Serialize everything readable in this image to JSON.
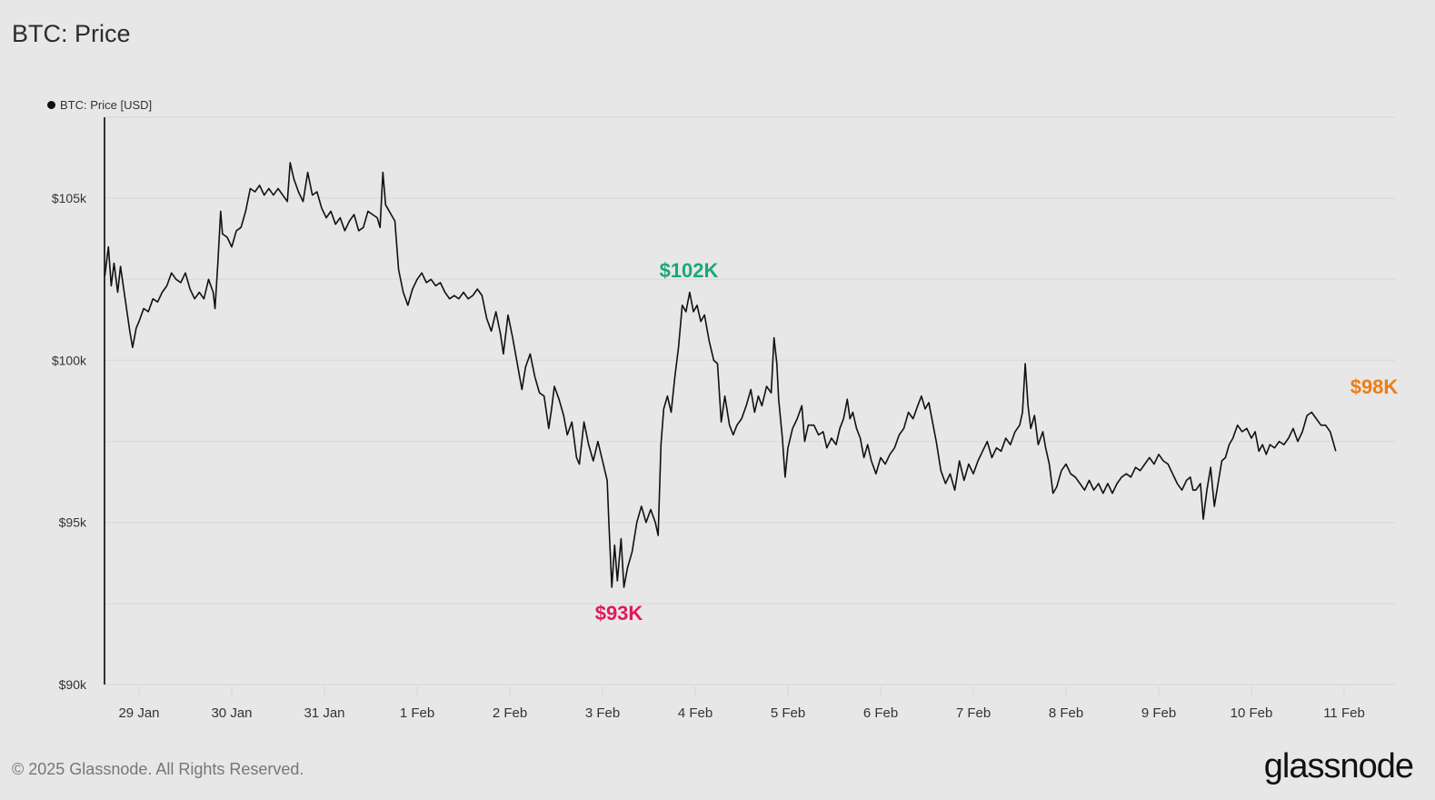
{
  "header": {
    "title": "BTC: Price"
  },
  "legend": {
    "label": "BTC: Price [USD]",
    "color": "#111111"
  },
  "footer": {
    "copyright": "© 2025 Glassnode. All Rights Reserved.",
    "brand": "glassnode"
  },
  "annotations": [
    {
      "text": "$102K",
      "color": "#1aa974",
      "x": 4.9,
      "price": 102.3
    },
    {
      "text": "$93K",
      "color": "#e0195f",
      "x": 4.15,
      "price": 92.7
    },
    {
      "text": "$98K",
      "color": "#ef7d12",
      "x": 13.4,
      "price": 98.8
    }
  ],
  "chart_data": {
    "type": "line",
    "title": "BTC: Price",
    "xlabel": "",
    "ylabel": "Price [USD]",
    "series_name": "BTC: Price [USD]",
    "ylim": [
      90,
      107.5
    ],
    "yticks": [
      {
        "value": 90,
        "label": "$90k"
      },
      {
        "value": 95,
        "label": "$95k"
      },
      {
        "value": 100,
        "label": "$100k"
      },
      {
        "value": 105,
        "label": "$105k"
      }
    ],
    "grid_values": [
      90,
      92.5,
      95,
      97.5,
      100,
      102.5,
      105,
      107.5
    ],
    "xticks": [
      "29 Jan",
      "30 Jan",
      "31 Jan",
      "1 Feb",
      "2 Feb",
      "3 Feb",
      "4 Feb",
      "5 Feb",
      "6 Feb",
      "7 Feb",
      "8 Feb",
      "9 Feb",
      "10 Feb",
      "11 Feb"
    ],
    "x_unit": "days since 29 Jan 00:00",
    "xlim": [
      -0.37,
      13.55
    ],
    "points": [
      [
        -0.37,
        102.6
      ],
      [
        -0.33,
        103.5
      ],
      [
        -0.3,
        102.3
      ],
      [
        -0.27,
        103.0
      ],
      [
        -0.23,
        102.1
      ],
      [
        -0.2,
        102.9
      ],
      [
        -0.15,
        101.9
      ],
      [
        -0.1,
        100.9
      ],
      [
        -0.07,
        100.4
      ],
      [
        -0.03,
        101.0
      ],
      [
        0.0,
        101.2
      ],
      [
        0.05,
        101.6
      ],
      [
        0.1,
        101.5
      ],
      [
        0.15,
        101.9
      ],
      [
        0.2,
        101.8
      ],
      [
        0.25,
        102.1
      ],
      [
        0.3,
        102.3
      ],
      [
        0.35,
        102.7
      ],
      [
        0.4,
        102.5
      ],
      [
        0.45,
        102.4
      ],
      [
        0.5,
        102.7
      ],
      [
        0.55,
        102.2
      ],
      [
        0.6,
        101.9
      ],
      [
        0.65,
        102.1
      ],
      [
        0.7,
        101.9
      ],
      [
        0.75,
        102.5
      ],
      [
        0.8,
        102.1
      ],
      [
        0.82,
        101.6
      ],
      [
        0.85,
        103.0
      ],
      [
        0.88,
        104.6
      ],
      [
        0.9,
        103.9
      ],
      [
        0.95,
        103.8
      ],
      [
        1.0,
        103.5
      ],
      [
        1.05,
        104.0
      ],
      [
        1.1,
        104.1
      ],
      [
        1.15,
        104.6
      ],
      [
        1.2,
        105.3
      ],
      [
        1.25,
        105.2
      ],
      [
        1.3,
        105.4
      ],
      [
        1.35,
        105.1
      ],
      [
        1.4,
        105.3
      ],
      [
        1.45,
        105.1
      ],
      [
        1.5,
        105.3
      ],
      [
        1.55,
        105.1
      ],
      [
        1.6,
        104.9
      ],
      [
        1.63,
        106.1
      ],
      [
        1.67,
        105.6
      ],
      [
        1.72,
        105.2
      ],
      [
        1.77,
        104.9
      ],
      [
        1.82,
        105.8
      ],
      [
        1.87,
        105.1
      ],
      [
        1.92,
        105.2
      ],
      [
        1.97,
        104.7
      ],
      [
        2.02,
        104.4
      ],
      [
        2.07,
        104.6
      ],
      [
        2.12,
        104.2
      ],
      [
        2.17,
        104.4
      ],
      [
        2.22,
        104.0
      ],
      [
        2.27,
        104.3
      ],
      [
        2.32,
        104.5
      ],
      [
        2.37,
        104.0
      ],
      [
        2.42,
        104.1
      ],
      [
        2.47,
        104.6
      ],
      [
        2.52,
        104.5
      ],
      [
        2.57,
        104.4
      ],
      [
        2.6,
        104.1
      ],
      [
        2.63,
        105.8
      ],
      [
        2.66,
        104.8
      ],
      [
        2.72,
        104.5
      ],
      [
        2.76,
        104.3
      ],
      [
        2.8,
        102.8
      ],
      [
        2.85,
        102.1
      ],
      [
        2.9,
        101.7
      ],
      [
        2.95,
        102.2
      ],
      [
        3.0,
        102.5
      ],
      [
        3.05,
        102.7
      ],
      [
        3.1,
        102.4
      ],
      [
        3.15,
        102.5
      ],
      [
        3.2,
        102.3
      ],
      [
        3.25,
        102.4
      ],
      [
        3.3,
        102.1
      ],
      [
        3.35,
        101.9
      ],
      [
        3.4,
        102.0
      ],
      [
        3.45,
        101.9
      ],
      [
        3.5,
        102.1
      ],
      [
        3.55,
        101.9
      ],
      [
        3.6,
        102.0
      ],
      [
        3.65,
        102.2
      ],
      [
        3.7,
        102.0
      ],
      [
        3.75,
        101.3
      ],
      [
        3.8,
        100.9
      ],
      [
        3.85,
        101.5
      ],
      [
        3.9,
        100.8
      ],
      [
        3.93,
        100.2
      ],
      [
        3.98,
        101.4
      ],
      [
        4.03,
        100.7
      ],
      [
        4.08,
        99.9
      ],
      [
        4.13,
        99.1
      ],
      [
        4.17,
        99.8
      ],
      [
        4.22,
        100.2
      ],
      [
        4.27,
        99.5
      ],
      [
        4.32,
        99.0
      ],
      [
        4.37,
        98.9
      ],
      [
        4.42,
        97.9
      ],
      [
        4.45,
        98.5
      ],
      [
        4.48,
        99.2
      ],
      [
        4.53,
        98.8
      ],
      [
        4.58,
        98.3
      ],
      [
        4.62,
        97.7
      ],
      [
        4.67,
        98.1
      ],
      [
        4.72,
        97.0
      ],
      [
        4.75,
        96.8
      ],
      [
        4.8,
        98.1
      ],
      [
        4.85,
        97.4
      ],
      [
        4.9,
        96.9
      ],
      [
        4.95,
        97.5
      ],
      [
        5.0,
        96.9
      ],
      [
        5.05,
        96.3
      ],
      [
        5.07,
        94.9
      ],
      [
        5.1,
        93.0
      ],
      [
        5.13,
        94.3
      ],
      [
        5.16,
        93.2
      ],
      [
        5.2,
        94.5
      ],
      [
        5.23,
        93.0
      ],
      [
        5.27,
        93.6
      ],
      [
        5.32,
        94.1
      ],
      [
        5.37,
        95.0
      ],
      [
        5.42,
        95.5
      ],
      [
        5.47,
        95.0
      ],
      [
        5.52,
        95.4
      ],
      [
        5.57,
        95.0
      ],
      [
        5.6,
        94.6
      ],
      [
        5.63,
        97.4
      ],
      [
        5.66,
        98.5
      ],
      [
        5.7,
        98.9
      ],
      [
        5.74,
        98.4
      ],
      [
        5.78,
        99.5
      ],
      [
        5.82,
        100.4
      ],
      [
        5.86,
        101.7
      ],
      [
        5.9,
        101.5
      ],
      [
        5.94,
        102.1
      ],
      [
        5.98,
        101.5
      ],
      [
        6.02,
        101.7
      ],
      [
        6.06,
        101.2
      ],
      [
        6.1,
        101.4
      ],
      [
        6.15,
        100.6
      ],
      [
        6.2,
        100.0
      ],
      [
        6.24,
        99.9
      ],
      [
        6.28,
        98.1
      ],
      [
        6.32,
        98.9
      ],
      [
        6.37,
        98.0
      ],
      [
        6.41,
        97.7
      ],
      [
        6.45,
        98.0
      ],
      [
        6.5,
        98.2
      ],
      [
        6.55,
        98.6
      ],
      [
        6.6,
        99.1
      ],
      [
        6.64,
        98.4
      ],
      [
        6.68,
        98.9
      ],
      [
        6.72,
        98.6
      ],
      [
        6.77,
        99.2
      ],
      [
        6.82,
        99.0
      ],
      [
        6.85,
        100.7
      ],
      [
        6.88,
        99.9
      ],
      [
        6.9,
        98.8
      ],
      [
        6.94,
        97.6
      ],
      [
        6.97,
        96.4
      ],
      [
        7.0,
        97.3
      ],
      [
        7.05,
        97.9
      ],
      [
        7.1,
        98.2
      ],
      [
        7.15,
        98.6
      ],
      [
        7.18,
        97.5
      ],
      [
        7.22,
        98.0
      ],
      [
        7.28,
        98.0
      ],
      [
        7.33,
        97.7
      ],
      [
        7.38,
        97.8
      ],
      [
        7.42,
        97.3
      ],
      [
        7.47,
        97.6
      ],
      [
        7.52,
        97.4
      ],
      [
        7.56,
        97.9
      ],
      [
        7.6,
        98.2
      ],
      [
        7.64,
        98.8
      ],
      [
        7.67,
        98.2
      ],
      [
        7.7,
        98.4
      ],
      [
        7.74,
        97.9
      ],
      [
        7.78,
        97.6
      ],
      [
        7.82,
        97.0
      ],
      [
        7.86,
        97.4
      ],
      [
        7.9,
        96.9
      ],
      [
        7.95,
        96.5
      ],
      [
        8.0,
        97.0
      ],
      [
        8.05,
        96.8
      ],
      [
        8.1,
        97.1
      ],
      [
        8.15,
        97.3
      ],
      [
        8.2,
        97.7
      ],
      [
        8.25,
        97.9
      ],
      [
        8.3,
        98.4
      ],
      [
        8.35,
        98.2
      ],
      [
        8.4,
        98.6
      ],
      [
        8.44,
        98.9
      ],
      [
        8.48,
        98.5
      ],
      [
        8.52,
        98.7
      ],
      [
        8.56,
        98.1
      ],
      [
        8.6,
        97.5
      ],
      [
        8.65,
        96.6
      ],
      [
        8.7,
        96.2
      ],
      [
        8.75,
        96.5
      ],
      [
        8.8,
        96.0
      ],
      [
        8.85,
        96.9
      ],
      [
        8.9,
        96.3
      ],
      [
        8.95,
        96.8
      ],
      [
        9.0,
        96.5
      ],
      [
        9.05,
        96.9
      ],
      [
        9.1,
        97.2
      ],
      [
        9.15,
        97.5
      ],
      [
        9.2,
        97.0
      ],
      [
        9.25,
        97.3
      ],
      [
        9.3,
        97.2
      ],
      [
        9.35,
        97.6
      ],
      [
        9.4,
        97.4
      ],
      [
        9.45,
        97.8
      ],
      [
        9.5,
        98.0
      ],
      [
        9.53,
        98.4
      ],
      [
        9.56,
        99.9
      ],
      [
        9.59,
        98.6
      ],
      [
        9.62,
        97.9
      ],
      [
        9.66,
        98.3
      ],
      [
        9.7,
        97.4
      ],
      [
        9.75,
        97.8
      ],
      [
        9.78,
        97.3
      ],
      [
        9.82,
        96.8
      ],
      [
        9.86,
        95.9
      ],
      [
        9.9,
        96.1
      ],
      [
        9.95,
        96.6
      ],
      [
        10.0,
        96.8
      ],
      [
        10.05,
        96.5
      ],
      [
        10.1,
        96.4
      ],
      [
        10.15,
        96.2
      ],
      [
        10.2,
        96.0
      ],
      [
        10.25,
        96.3
      ],
      [
        10.3,
        96.0
      ],
      [
        10.35,
        96.2
      ],
      [
        10.4,
        95.9
      ],
      [
        10.45,
        96.2
      ],
      [
        10.5,
        95.9
      ],
      [
        10.55,
        96.2
      ],
      [
        10.6,
        96.4
      ],
      [
        10.65,
        96.5
      ],
      [
        10.7,
        96.4
      ],
      [
        10.75,
        96.7
      ],
      [
        10.8,
        96.6
      ],
      [
        10.85,
        96.8
      ],
      [
        10.9,
        97.0
      ],
      [
        10.95,
        96.8
      ],
      [
        11.0,
        97.1
      ],
      [
        11.05,
        96.9
      ],
      [
        11.1,
        96.8
      ],
      [
        11.15,
        96.5
      ],
      [
        11.2,
        96.2
      ],
      [
        11.25,
        96.0
      ],
      [
        11.3,
        96.3
      ],
      [
        11.34,
        96.4
      ],
      [
        11.37,
        96.0
      ],
      [
        11.4,
        96.0
      ],
      [
        11.45,
        96.2
      ],
      [
        11.48,
        95.1
      ],
      [
        11.52,
        96.0
      ],
      [
        11.56,
        96.7
      ],
      [
        11.6,
        95.5
      ],
      [
        11.64,
        96.2
      ],
      [
        11.68,
        96.9
      ],
      [
        11.72,
        97.0
      ],
      [
        11.76,
        97.4
      ],
      [
        11.8,
        97.6
      ],
      [
        11.85,
        98.0
      ],
      [
        11.9,
        97.8
      ],
      [
        11.95,
        97.9
      ],
      [
        12.0,
        97.6
      ],
      [
        12.04,
        97.8
      ],
      [
        12.08,
        97.2
      ],
      [
        12.12,
        97.4
      ],
      [
        12.16,
        97.1
      ],
      [
        12.2,
        97.4
      ],
      [
        12.25,
        97.3
      ],
      [
        12.3,
        97.5
      ],
      [
        12.35,
        97.4
      ],
      [
        12.4,
        97.6
      ],
      [
        12.45,
        97.9
      ],
      [
        12.5,
        97.5
      ],
      [
        12.55,
        97.8
      ],
      [
        12.6,
        98.3
      ],
      [
        12.65,
        98.4
      ],
      [
        12.7,
        98.2
      ],
      [
        12.75,
        98.0
      ],
      [
        12.8,
        98.0
      ],
      [
        12.85,
        97.8
      ],
      [
        12.88,
        97.5
      ],
      [
        12.91,
        97.2
      ]
    ]
  }
}
